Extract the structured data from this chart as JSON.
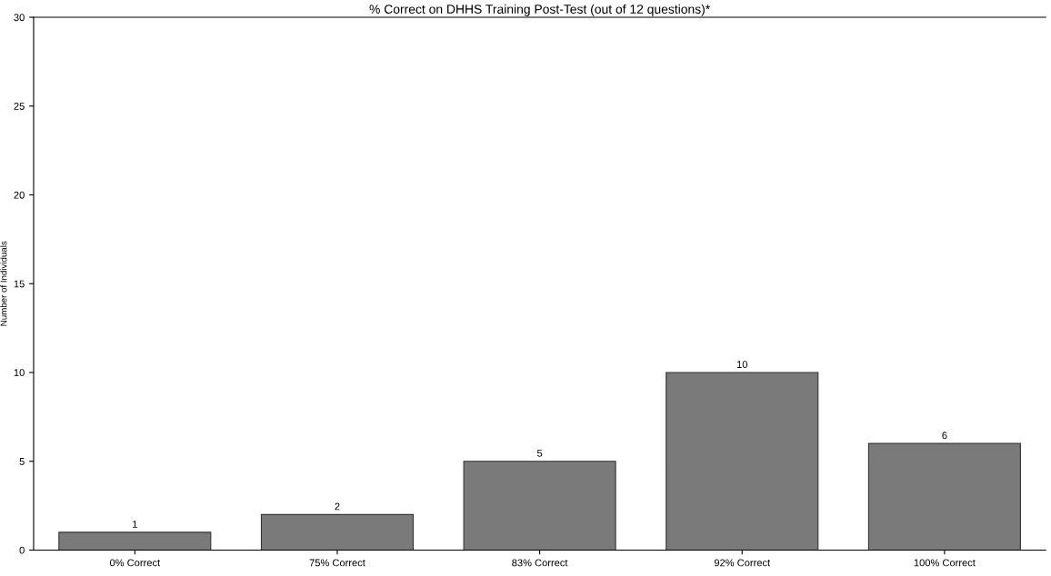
{
  "chart_data": {
    "type": "bar",
    "title": "% Correct on DHHS Training Post-Test (out of 12 questions)*",
    "ylabel": "Number of Individuals",
    "categories": [
      "0% Correct",
      "75% Correct",
      "83% Correct",
      "92% Correct",
      "100% Correct"
    ],
    "values": [
      1,
      2,
      5,
      10,
      6
    ],
    "color": "#7a7a7a",
    "ylim": [
      0,
      30
    ],
    "yticks": [
      0,
      5,
      10,
      15,
      20,
      25,
      30
    ],
    "grid": false,
    "data_labels": true
  }
}
